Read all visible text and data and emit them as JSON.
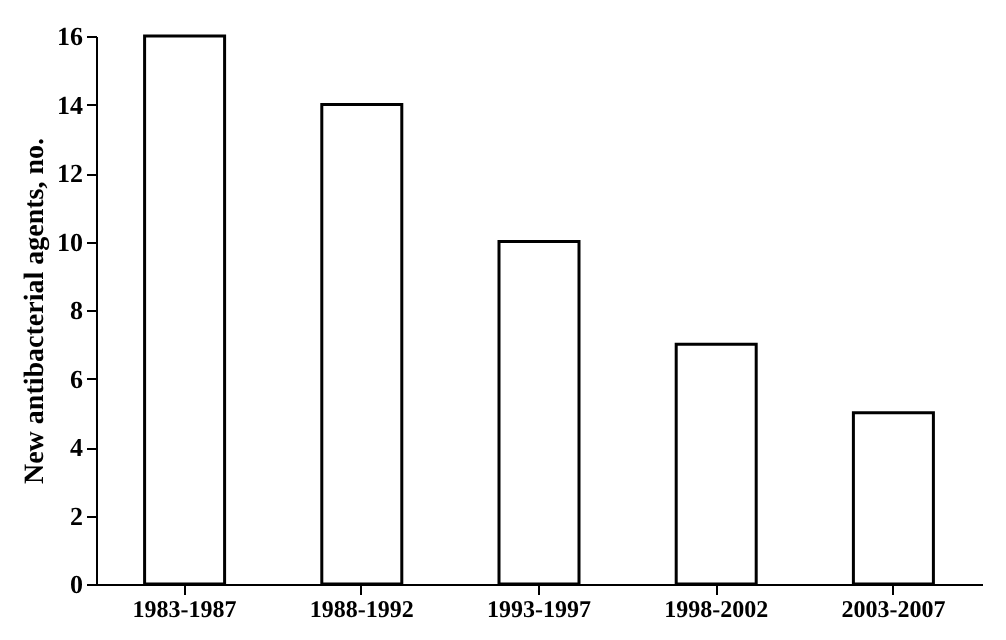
{
  "chart_data": {
    "type": "bar",
    "ylabel": "New antibacterial agents, no.",
    "categories": [
      "1983-1987",
      "1988-1992",
      "1993-1997",
      "1998-2002",
      "2003-2007"
    ],
    "values": [
      16,
      14,
      10,
      7,
      5
    ],
    "color": "#ffffff",
    "ylim": [
      0,
      16
    ],
    "yticks": [
      0,
      2,
      4,
      6,
      8,
      10,
      12,
      14,
      16
    ],
    "grid": false
  }
}
